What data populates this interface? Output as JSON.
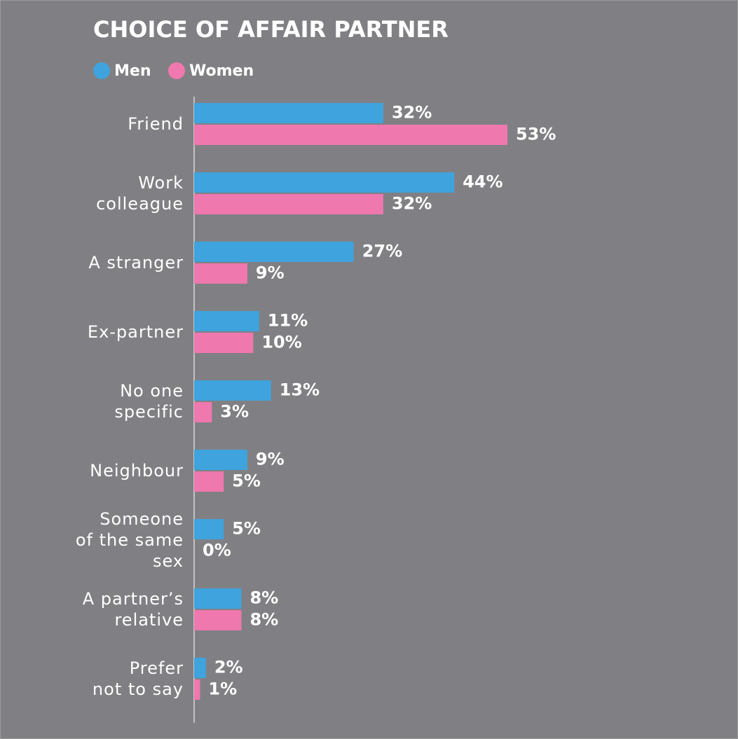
{
  "chart_data": {
    "type": "hbar",
    "title": "CHOICE OF AFFAIR PARTNER",
    "categories": [
      "Friend",
      "Work\ncolleague",
      "A stranger",
      "Ex-partner",
      "No one\nspecific",
      "Neighbour",
      "Someone\nof the same\nsex",
      "A partner’s\nrelative",
      "Prefer\nnot to say"
    ],
    "series": [
      {
        "name": "Men",
        "color": "#3fa3dd",
        "values": [
          32,
          44,
          27,
          11,
          13,
          9,
          5,
          8,
          2
        ],
        "value_labels": [
          "32%",
          "44%",
          "27%",
          "11%",
          "13%",
          "9%",
          "5%",
          "8%",
          "2%"
        ]
      },
      {
        "name": "Women",
        "color": "#ef78ae",
        "values": [
          53,
          32,
          9,
          10,
          3,
          5,
          0,
          8,
          1
        ],
        "value_labels": [
          "53%",
          "32%",
          "9%",
          "10%",
          "3%",
          "5%",
          "0%",
          "8%",
          "1%"
        ]
      }
    ],
    "xlim": [
      0,
      90
    ],
    "legend": "top-left"
  }
}
